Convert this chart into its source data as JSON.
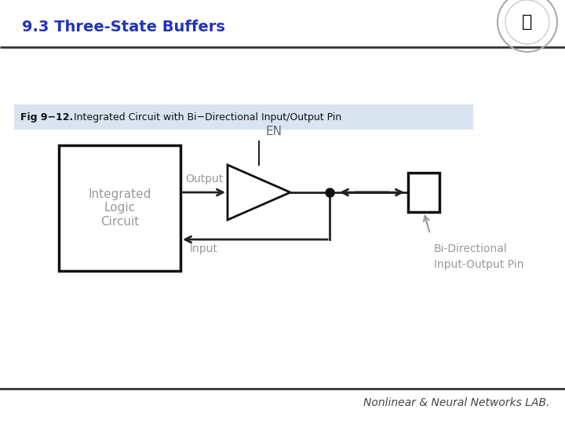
{
  "title": "9.3 Three-State Buffers",
  "title_color": "#2233bb",
  "fig_label": "Fig 9−12.",
  "fig_desc": " Integrated Circuit with Bi−Directional Input/Output Pin",
  "fig_bg_color": "#d8e4f0",
  "background_color": "#ffffff",
  "footer_text": "Nonlinear & Neural Networks LAB.",
  "footer_color": "#444444",
  "ilc_text": "Integrated\nLogic\nCircuit",
  "line_color": "#222222",
  "gray_color": "#999999",
  "dark_gray": "#666666"
}
